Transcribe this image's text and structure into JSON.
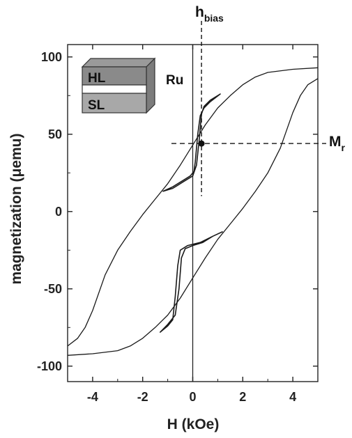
{
  "chart_data": {
    "type": "line",
    "title": "",
    "xlabel": "H (kOe)",
    "ylabel": "magnetization (μemu)",
    "xlim": [
      -5,
      5
    ],
    "ylim": [
      -110,
      108
    ],
    "x_ticks": [
      -4,
      -2,
      0,
      2,
      4
    ],
    "y_ticks": [
      -100,
      -50,
      0,
      50,
      100
    ],
    "grid": false,
    "legend": "none",
    "series": [
      {
        "kind": "major-loop-descending",
        "points": [
          [
            5.0,
            93
          ],
          [
            4.0,
            92
          ],
          [
            3.0,
            90
          ],
          [
            2.5,
            87
          ],
          [
            2.0,
            82
          ],
          [
            1.5,
            75
          ],
          [
            1.0,
            67
          ],
          [
            0.5,
            56
          ],
          [
            0.0,
            43
          ],
          [
            -0.5,
            30
          ],
          [
            -1.0,
            18
          ],
          [
            -1.5,
            8
          ],
          [
            -2.0,
            -2
          ],
          [
            -2.5,
            -13
          ],
          [
            -3.0,
            -25
          ],
          [
            -3.5,
            -41
          ],
          [
            -4.0,
            -64
          ],
          [
            -4.3,
            -75
          ],
          [
            -4.6,
            -82
          ],
          [
            -5.0,
            -87
          ]
        ]
      },
      {
        "kind": "major-loop-ascending",
        "points": [
          [
            -5.0,
            -93
          ],
          [
            -4.0,
            -92
          ],
          [
            -3.0,
            -90
          ],
          [
            -2.5,
            -87
          ],
          [
            -2.0,
            -82
          ],
          [
            -1.5,
            -75
          ],
          [
            -1.0,
            -67
          ],
          [
            -0.5,
            -56
          ],
          [
            0.0,
            -43
          ],
          [
            0.5,
            -30
          ],
          [
            1.0,
            -18
          ],
          [
            1.5,
            -8
          ],
          [
            2.0,
            2
          ],
          [
            2.5,
            13
          ],
          [
            3.0,
            25
          ],
          [
            3.5,
            41
          ],
          [
            4.0,
            64
          ],
          [
            4.3,
            75
          ],
          [
            4.6,
            82
          ],
          [
            5.0,
            86
          ]
        ]
      },
      {
        "kind": "upper-minor-loop",
        "points": [
          [
            -1.2,
            13
          ],
          [
            -0.8,
            16
          ],
          [
            -0.4,
            20
          ],
          [
            -0.1,
            23
          ],
          [
            0.05,
            26
          ],
          [
            0.1,
            32
          ],
          [
            0.2,
            50
          ],
          [
            0.3,
            62
          ],
          [
            0.45,
            67
          ],
          [
            0.7,
            71
          ],
          [
            1.1,
            76
          ],
          [
            0.7,
            72
          ],
          [
            0.45,
            68
          ],
          [
            0.35,
            63
          ],
          [
            0.25,
            45
          ],
          [
            0.15,
            30
          ],
          [
            0.0,
            23
          ],
          [
            -0.4,
            19
          ],
          [
            -0.8,
            15
          ],
          [
            -1.2,
            13
          ]
        ]
      },
      {
        "kind": "lower-minor-loop",
        "points": [
          [
            1.2,
            -13
          ],
          [
            0.8,
            -16
          ],
          [
            0.4,
            -20
          ],
          [
            0.0,
            -22
          ],
          [
            -0.3,
            -24
          ],
          [
            -0.45,
            -30
          ],
          [
            -0.55,
            -50
          ],
          [
            -0.7,
            -67
          ],
          [
            -1.0,
            -73
          ],
          [
            -1.3,
            -78
          ],
          [
            -1.0,
            -74
          ],
          [
            -0.8,
            -70
          ],
          [
            -0.7,
            -55
          ],
          [
            -0.6,
            -35
          ],
          [
            -0.5,
            -25
          ],
          [
            -0.2,
            -22
          ],
          [
            0.3,
            -20
          ],
          [
            0.8,
            -16
          ],
          [
            1.2,
            -13
          ]
        ]
      }
    ],
    "annotations": {
      "h_bias": {
        "label": "h",
        "subscript": "bias",
        "x": 0.35
      },
      "m_r": {
        "label": "M",
        "subscript": "r",
        "y": 44,
        "point": [
          0.35,
          44
        ]
      },
      "inset": {
        "top_layer": "HL",
        "bottom_layer": "SL",
        "spacer": "Ru"
      }
    },
    "colors": {
      "line": "#1a1a1a"
    }
  }
}
